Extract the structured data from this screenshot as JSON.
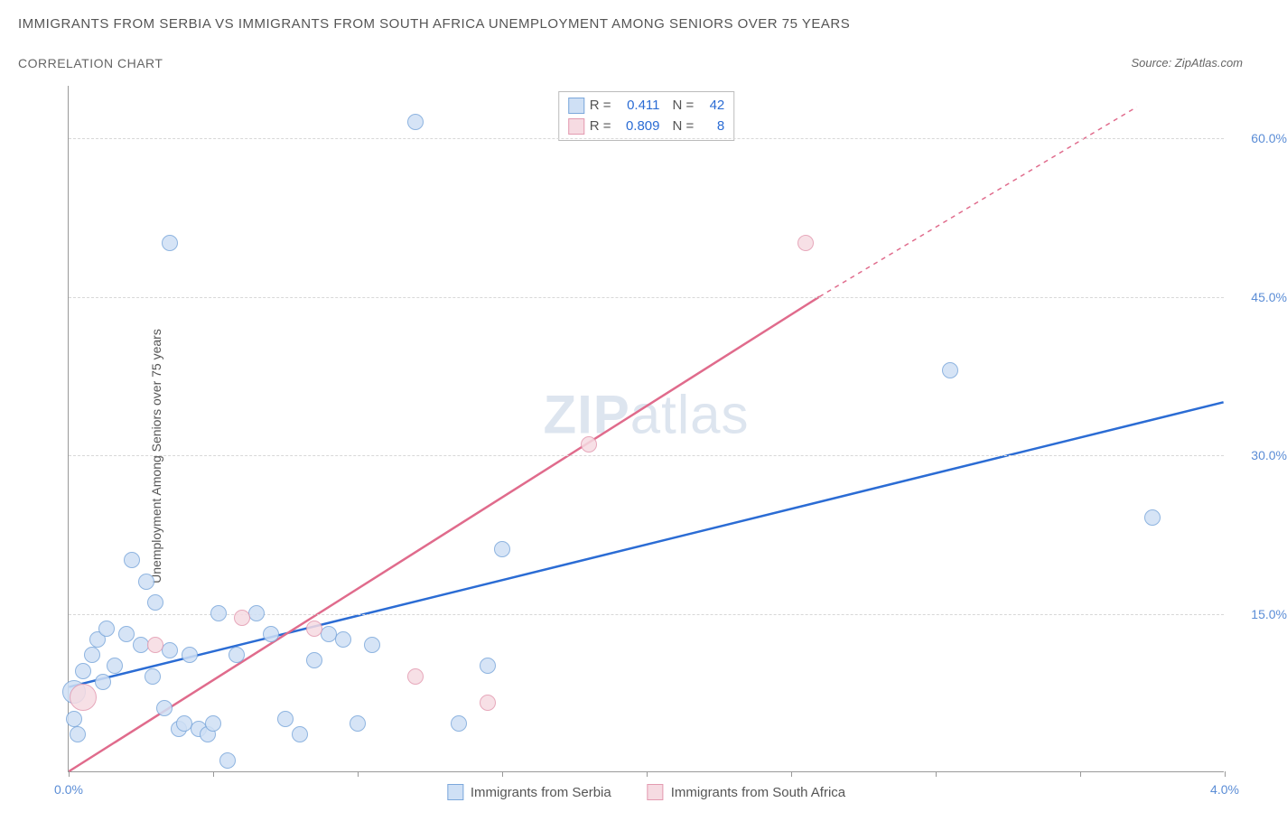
{
  "title": "IMMIGRANTS FROM SERBIA VS IMMIGRANTS FROM SOUTH AFRICA UNEMPLOYMENT AMONG SENIORS OVER 75 YEARS",
  "subtitle": "CORRELATION CHART",
  "source": "Source: ZipAtlas.com",
  "ylabel": "Unemployment Among Seniors over 75 years",
  "watermark_bold": "ZIP",
  "watermark_plain": "atlas",
  "chart": {
    "type": "scatter-correlation",
    "background_color": "#ffffff",
    "grid_color": "#d8d8d8",
    "axis_color": "#999999",
    "label_color": "#5b8dd6",
    "xlim": [
      0,
      4.0
    ],
    "ylim": [
      0,
      65
    ],
    "xticks": [
      0.0,
      0.5,
      1.0,
      1.5,
      2.0,
      2.5,
      3.0,
      3.5,
      4.0
    ],
    "xtick_labels_shown": {
      "0": "0.0%",
      "4": "4.0%"
    },
    "yticks": [
      15,
      30,
      45,
      60
    ],
    "ytick_labels": [
      "15.0%",
      "30.0%",
      "45.0%",
      "60.0%"
    ],
    "series": [
      {
        "name": "Immigrants from Serbia",
        "color_fill": "#cfe0f5",
        "color_stroke": "#7ba7db",
        "trend_color": "#2b6cd4",
        "trend_width": 2.5,
        "R": "0.411",
        "N": "42",
        "trend": {
          "x1": 0.0,
          "y1": 8.0,
          "x2": 4.0,
          "y2": 35.0,
          "dashed": false
        },
        "points": [
          {
            "x": 0.03,
            "y": 3.5,
            "r": 9
          },
          {
            "x": 0.02,
            "y": 5.0,
            "r": 9
          },
          {
            "x": 0.02,
            "y": 7.5,
            "r": 13
          },
          {
            "x": 0.05,
            "y": 9.5,
            "r": 9
          },
          {
            "x": 0.08,
            "y": 11.0,
            "r": 9
          },
          {
            "x": 0.1,
            "y": 12.5,
            "r": 9
          },
          {
            "x": 0.13,
            "y": 13.5,
            "r": 9
          },
          {
            "x": 0.12,
            "y": 8.5,
            "r": 9
          },
          {
            "x": 0.16,
            "y": 10.0,
            "r": 9
          },
          {
            "x": 0.2,
            "y": 13.0,
            "r": 9
          },
          {
            "x": 0.22,
            "y": 20.0,
            "r": 9
          },
          {
            "x": 0.25,
            "y": 12.0,
            "r": 9
          },
          {
            "x": 0.27,
            "y": 18.0,
            "r": 9
          },
          {
            "x": 0.29,
            "y": 9.0,
            "r": 9
          },
          {
            "x": 0.3,
            "y": 16.0,
            "r": 9
          },
          {
            "x": 0.33,
            "y": 6.0,
            "r": 9
          },
          {
            "x": 0.35,
            "y": 11.5,
            "r": 9
          },
          {
            "x": 0.38,
            "y": 4.0,
            "r": 9
          },
          {
            "x": 0.4,
            "y": 4.5,
            "r": 9
          },
          {
            "x": 0.42,
            "y": 11.0,
            "r": 9
          },
          {
            "x": 0.45,
            "y": 4.0,
            "r": 9
          },
          {
            "x": 0.48,
            "y": 3.5,
            "r": 9
          },
          {
            "x": 0.5,
            "y": 4.5,
            "r": 9
          },
          {
            "x": 0.52,
            "y": 15.0,
            "r": 9
          },
          {
            "x": 0.55,
            "y": 1.0,
            "r": 9
          },
          {
            "x": 0.58,
            "y": 11.0,
            "r": 9
          },
          {
            "x": 0.65,
            "y": 15.0,
            "r": 9
          },
          {
            "x": 0.7,
            "y": 13.0,
            "r": 9
          },
          {
            "x": 0.75,
            "y": 5.0,
            "r": 9
          },
          {
            "x": 0.8,
            "y": 3.5,
            "r": 9
          },
          {
            "x": 0.85,
            "y": 10.5,
            "r": 9
          },
          {
            "x": 0.9,
            "y": 13.0,
            "r": 9
          },
          {
            "x": 0.95,
            "y": 12.5,
            "r": 9
          },
          {
            "x": 1.0,
            "y": 4.5,
            "r": 9
          },
          {
            "x": 1.05,
            "y": 12.0,
            "r": 9
          },
          {
            "x": 1.35,
            "y": 4.5,
            "r": 9
          },
          {
            "x": 1.45,
            "y": 10.0,
            "r": 9
          },
          {
            "x": 1.5,
            "y": 21.0,
            "r": 9
          },
          {
            "x": 1.2,
            "y": 61.5,
            "r": 9
          },
          {
            "x": 0.35,
            "y": 50.0,
            "r": 9
          },
          {
            "x": 3.05,
            "y": 38.0,
            "r": 9
          },
          {
            "x": 3.75,
            "y": 24.0,
            "r": 9
          }
        ]
      },
      {
        "name": "Immigrants from South Africa",
        "color_fill": "#f6dbe2",
        "color_stroke": "#e39ab0",
        "trend_color": "#e06b8c",
        "trend_width": 2.5,
        "R": "0.809",
        "N": "8",
        "trend": {
          "x1": 0.0,
          "y1": 0.0,
          "x2": 2.6,
          "y2": 45.0,
          "dashed": false
        },
        "trend_dashed_ext": {
          "x1": 2.6,
          "y1": 45.0,
          "x2": 3.7,
          "y2": 63.0
        },
        "points": [
          {
            "x": 0.05,
            "y": 7.0,
            "r": 15
          },
          {
            "x": 0.3,
            "y": 12.0,
            "r": 9
          },
          {
            "x": 0.6,
            "y": 14.5,
            "r": 9
          },
          {
            "x": 0.85,
            "y": 13.5,
            "r": 9
          },
          {
            "x": 1.2,
            "y": 9.0,
            "r": 9
          },
          {
            "x": 1.45,
            "y": 6.5,
            "r": 9
          },
          {
            "x": 1.8,
            "y": 31.0,
            "r": 9
          },
          {
            "x": 2.55,
            "y": 50.0,
            "r": 9
          }
        ]
      }
    ]
  },
  "stats_box": {
    "rows": [
      {
        "swatch_fill": "#cfe0f5",
        "swatch_stroke": "#7ba7db",
        "r_label": "R =",
        "r_val": "0.411",
        "n_label": "N =",
        "n_val": "42"
      },
      {
        "swatch_fill": "#f6dbe2",
        "swatch_stroke": "#e39ab0",
        "r_label": "R =",
        "r_val": "0.809",
        "n_label": "N =",
        "n_val": "8"
      }
    ]
  },
  "bottom_legend": [
    {
      "swatch_fill": "#cfe0f5",
      "swatch_stroke": "#7ba7db",
      "label": "Immigrants from Serbia"
    },
    {
      "swatch_fill": "#f6dbe2",
      "swatch_stroke": "#e39ab0",
      "label": "Immigrants from South Africa"
    }
  ]
}
